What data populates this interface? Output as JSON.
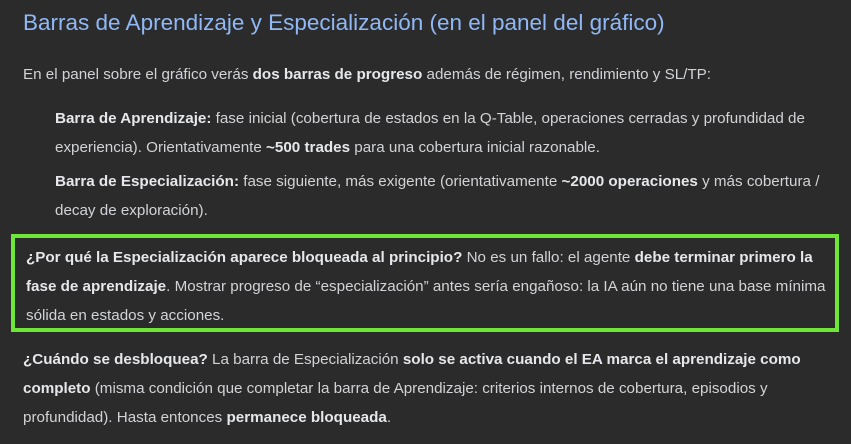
{
  "title": "Barras de Aprendizaje y Especialización (en el panel del gráfico)",
  "intro": {
    "t1": "En el panel sobre el gráfico verás ",
    "b1": "dos barras de progreso",
    "t2": " además de régimen, rendimiento y SL/TP:"
  },
  "items": [
    {
      "label": "Barra de Aprendizaje:",
      "t1": " fase inicial (cobertura de estados en la Q-Table, operaciones cerradas y profundidad de experiencia). Orientativamente ",
      "b1": "~500 trades",
      "t2": " para una cobertura inicial razonable."
    },
    {
      "label": "Barra de Especialización:",
      "t1": " fase siguiente, más exigente (orientativamente ",
      "b1": "~2000 operaciones",
      "t2": " y más cobertura / decay de exploración)."
    }
  ],
  "why": {
    "b1": "¿Por qué la Especialización aparece bloqueada al principio?",
    "t1": " No es un fallo: el agente ",
    "b2": "debe terminar primero la fase de aprendizaje",
    "t2": ". Mostrar progreso de “especialización” antes sería engañoso: la IA aún no tiene una base mínima sólida en estados y acciones."
  },
  "when": {
    "b1": "¿Cuándo se desbloquea?",
    "t1": " La barra de Especialización ",
    "b2": "solo se activa cuando el EA marca el aprendizaje como completo",
    "t2": " (misma condición que completar la barra de Aprendizaje: criterios internos de cobertura, episodios y profundidad). Hasta entonces ",
    "b3": "permanece bloqueada",
    "t3": "."
  },
  "colors": {
    "title": "#8fb8f5",
    "highlight_border": "#6de637",
    "background": "#2b2b2b"
  }
}
